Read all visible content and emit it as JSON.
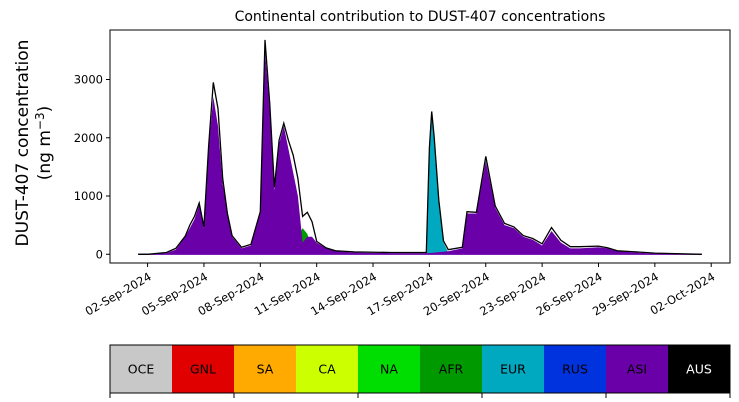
{
  "chart_data": {
    "type": "area",
    "title": "Continental contribution to DUST-407 concentrations",
    "xlabel": "",
    "ylabel_line1": "DUST-407 concentration",
    "ylabel_line2": "(ng m",
    "ylabel_sup": "−3",
    "ylabel_close": ")",
    "ylim": [
      -150,
      3850
    ],
    "xlim": [
      "2024-08-31T00:00",
      "2024-10-03T00:00"
    ],
    "yticks": [
      0,
      1000,
      2000,
      3000
    ],
    "xticks": [
      "02-Sep-2024",
      "05-Sep-2024",
      "08-Sep-2024",
      "11-Sep-2024",
      "14-Sep-2024",
      "17-Sep-2024",
      "20-Sep-2024",
      "23-Sep-2024",
      "26-Sep-2024",
      "29-Sep-2024",
      "02-Oct-2024"
    ],
    "grid": false,
    "legend_position": "bottom colorbar",
    "legend": [
      {
        "label": "OCE",
        "color": "#c8c8c8",
        "text_color": "#000000"
      },
      {
        "label": "GNL",
        "color": "#e00000",
        "text_color": "#000000"
      },
      {
        "label": "SA",
        "color": "#ffaa00",
        "text_color": "#000000"
      },
      {
        "label": "CA",
        "color": "#ccff00",
        "text_color": "#000000"
      },
      {
        "label": "NA",
        "color": "#00dd00",
        "text_color": "#000000"
      },
      {
        "label": "AFR",
        "color": "#009900",
        "text_color": "#000000"
      },
      {
        "label": "EUR",
        "color": "#00a8c0",
        "text_color": "#000000"
      },
      {
        "label": "RUS",
        "color": "#0033dd",
        "text_color": "#000000"
      },
      {
        "label": "ASI",
        "color": "#6a00a8",
        "text_color": "#000000"
      },
      {
        "label": "AUS",
        "color": "#000000",
        "text_color": "#ffffff"
      }
    ],
    "series": [
      {
        "name": "AFR",
        "color": "#009900",
        "points": [
          [
            "2024-09-01T12:00",
            0
          ],
          [
            "2024-09-04T00:00",
            5
          ],
          [
            "2024-09-05T00:00",
            20
          ],
          [
            "2024-09-06T00:00",
            25
          ],
          [
            "2024-09-07T00:00",
            20
          ],
          [
            "2024-09-08T00:00",
            30
          ],
          [
            "2024-09-08T12:00",
            40
          ],
          [
            "2024-09-09T00:00",
            60
          ],
          [
            "2024-09-09T12:00",
            150
          ],
          [
            "2024-09-10T00:00",
            300
          ],
          [
            "2024-09-10T06:00",
            450
          ],
          [
            "2024-09-10T12:00",
            350
          ],
          [
            "2024-09-10T18:00",
            100
          ],
          [
            "2024-09-11T00:00",
            20
          ],
          [
            "2024-09-12T00:00",
            10
          ],
          [
            "2024-09-13T00:00",
            10
          ],
          [
            "2024-09-14T00:00",
            5
          ],
          [
            "2024-09-15T00:00",
            5
          ],
          [
            "2024-09-16T00:00",
            5
          ],
          [
            "2024-09-17T00:00",
            5
          ],
          [
            "2024-09-18T00:00",
            5
          ],
          [
            "2024-09-19T00:00",
            15
          ],
          [
            "2024-09-20T00:00",
            20
          ],
          [
            "2024-09-21T00:00",
            15
          ],
          [
            "2024-09-22T00:00",
            10
          ],
          [
            "2024-09-23T00:00",
            25
          ],
          [
            "2024-09-24T00:00",
            30
          ],
          [
            "2024-09-25T00:00",
            20
          ],
          [
            "2024-09-26T00:00",
            10
          ],
          [
            "2024-09-27T00:00",
            5
          ],
          [
            "2024-09-30T00:00",
            5
          ],
          [
            "2024-10-01T12:00",
            0
          ]
        ]
      },
      {
        "name": "EUR",
        "color": "#00a8c0",
        "points": [
          [
            "2024-09-01T12:00",
            0
          ],
          [
            "2024-09-13T00:00",
            0
          ],
          [
            "2024-09-16T20:00",
            0
          ],
          [
            "2024-09-17T00:00",
            1800
          ],
          [
            "2024-09-17T03:00",
            2400
          ],
          [
            "2024-09-17T06:00",
            2000
          ],
          [
            "2024-09-17T12:00",
            900
          ],
          [
            "2024-09-17T18:00",
            200
          ],
          [
            "2024-09-18T00:00",
            30
          ],
          [
            "2024-09-19T00:00",
            10
          ],
          [
            "2024-09-21T00:00",
            10
          ],
          [
            "2024-09-24T00:00",
            10
          ],
          [
            "2024-10-01T12:00",
            0
          ]
        ]
      },
      {
        "name": "ASI",
        "color": "#6a00a8",
        "points": [
          [
            "2024-09-01T12:00",
            0
          ],
          [
            "2024-09-02T00:00",
            0
          ],
          [
            "2024-09-03T00:00",
            20
          ],
          [
            "2024-09-03T12:00",
            80
          ],
          [
            "2024-09-04T00:00",
            300
          ],
          [
            "2024-09-04T12:00",
            600
          ],
          [
            "2024-09-04T18:00",
            850
          ],
          [
            "2024-09-05T00:00",
            450
          ],
          [
            "2024-09-05T06:00",
            1800
          ],
          [
            "2024-09-05T12:00",
            2700
          ],
          [
            "2024-09-05T18:00",
            2200
          ],
          [
            "2024-09-06T00:00",
            1200
          ],
          [
            "2024-09-06T12:00",
            300
          ],
          [
            "2024-09-07T00:00",
            100
          ],
          [
            "2024-09-07T12:00",
            150
          ],
          [
            "2024-09-08T00:00",
            700
          ],
          [
            "2024-09-08T06:00",
            3500
          ],
          [
            "2024-09-08T12:00",
            2500
          ],
          [
            "2024-09-08T18:00",
            1100
          ],
          [
            "2024-09-09T00:00",
            1900
          ],
          [
            "2024-09-09T06:00",
            2200
          ],
          [
            "2024-09-09T12:00",
            1800
          ],
          [
            "2024-09-10T00:00",
            1000
          ],
          [
            "2024-09-10T06:00",
            200
          ],
          [
            "2024-09-10T12:00",
            300
          ],
          [
            "2024-09-10T18:00",
            300
          ],
          [
            "2024-09-11T00:00",
            200
          ],
          [
            "2024-09-11T12:00",
            100
          ],
          [
            "2024-09-12T00:00",
            50
          ],
          [
            "2024-09-13T00:00",
            30
          ],
          [
            "2024-09-15T00:00",
            20
          ],
          [
            "2024-09-17T00:00",
            20
          ],
          [
            "2024-09-18T00:00",
            50
          ],
          [
            "2024-09-18T18:00",
            100
          ],
          [
            "2024-09-19T00:00",
            700
          ],
          [
            "2024-09-19T12:00",
            700
          ],
          [
            "2024-09-20T00:00",
            1600
          ],
          [
            "2024-09-20T12:00",
            800
          ],
          [
            "2024-09-21T00:00",
            500
          ],
          [
            "2024-09-21T12:00",
            450
          ],
          [
            "2024-09-22T00:00",
            300
          ],
          [
            "2024-09-22T12:00",
            250
          ],
          [
            "2024-09-23T00:00",
            150
          ],
          [
            "2024-09-23T12:00",
            400
          ],
          [
            "2024-09-24T00:00",
            200
          ],
          [
            "2024-09-24T12:00",
            100
          ],
          [
            "2024-09-25T00:00",
            100
          ],
          [
            "2024-09-26T00:00",
            120
          ],
          [
            "2024-09-26T12:00",
            100
          ],
          [
            "2024-09-27T00:00",
            50
          ],
          [
            "2024-09-28T00:00",
            30
          ],
          [
            "2024-09-29T00:00",
            10
          ],
          [
            "2024-10-01T12:00",
            0
          ]
        ]
      }
    ],
    "total": [
      [
        "2024-09-01T12:00",
        0
      ],
      [
        "2024-09-02T00:00",
        0
      ],
      [
        "2024-09-03T00:00",
        30
      ],
      [
        "2024-09-03T12:00",
        100
      ],
      [
        "2024-09-04T00:00",
        310
      ],
      [
        "2024-09-04T06:00",
        500
      ],
      [
        "2024-09-04T12:00",
        650
      ],
      [
        "2024-09-04T18:00",
        880
      ],
      [
        "2024-09-05T00:00",
        470
      ],
      [
        "2024-09-05T06:00",
        1850
      ],
      [
        "2024-09-05T12:00",
        2950
      ],
      [
        "2024-09-05T18:00",
        2500
      ],
      [
        "2024-09-06T00:00",
        1300
      ],
      [
        "2024-09-06T06:00",
        700
      ],
      [
        "2024-09-06T12:00",
        320
      ],
      [
        "2024-09-07T00:00",
        120
      ],
      [
        "2024-09-07T12:00",
        170
      ],
      [
        "2024-09-08T00:00",
        730
      ],
      [
        "2024-09-08T06:00",
        3680
      ],
      [
        "2024-09-08T12:00",
        2600
      ],
      [
        "2024-09-08T18:00",
        1150
      ],
      [
        "2024-09-09T00:00",
        1960
      ],
      [
        "2024-09-09T06:00",
        2250
      ],
      [
        "2024-09-09T12:00",
        1950
      ],
      [
        "2024-09-09T18:00",
        1700
      ],
      [
        "2024-09-10T00:00",
        1300
      ],
      [
        "2024-09-10T06:00",
        650
      ],
      [
        "2024-09-10T12:00",
        720
      ],
      [
        "2024-09-10T18:00",
        560
      ],
      [
        "2024-09-11T00:00",
        220
      ],
      [
        "2024-09-11T12:00",
        110
      ],
      [
        "2024-09-12T00:00",
        60
      ],
      [
        "2024-09-13T00:00",
        40
      ],
      [
        "2024-09-15T00:00",
        30
      ],
      [
        "2024-09-16T20:00",
        30
      ],
      [
        "2024-09-17T00:00",
        1830
      ],
      [
        "2024-09-17T03:00",
        2450
      ],
      [
        "2024-09-17T06:00",
        2030
      ],
      [
        "2024-09-17T12:00",
        930
      ],
      [
        "2024-09-17T18:00",
        230
      ],
      [
        "2024-09-18T00:00",
        80
      ],
      [
        "2024-09-18T18:00",
        120
      ],
      [
        "2024-09-19T00:00",
        730
      ],
      [
        "2024-09-19T12:00",
        720
      ],
      [
        "2024-09-20T00:00",
        1680
      ],
      [
        "2024-09-20T12:00",
        830
      ],
      [
        "2024-09-21T00:00",
        530
      ],
      [
        "2024-09-21T12:00",
        470
      ],
      [
        "2024-09-22T00:00",
        320
      ],
      [
        "2024-09-22T12:00",
        270
      ],
      [
        "2024-09-23T00:00",
        180
      ],
      [
        "2024-09-23T12:00",
        460
      ],
      [
        "2024-09-24T00:00",
        240
      ],
      [
        "2024-09-24T12:00",
        130
      ],
      [
        "2024-09-25T00:00",
        130
      ],
      [
        "2024-09-26T00:00",
        140
      ],
      [
        "2024-09-26T12:00",
        110
      ],
      [
        "2024-09-27T00:00",
        60
      ],
      [
        "2024-09-28T00:00",
        40
      ],
      [
        "2024-09-29T00:00",
        20
      ],
      [
        "2024-10-01T12:00",
        0
      ]
    ]
  }
}
